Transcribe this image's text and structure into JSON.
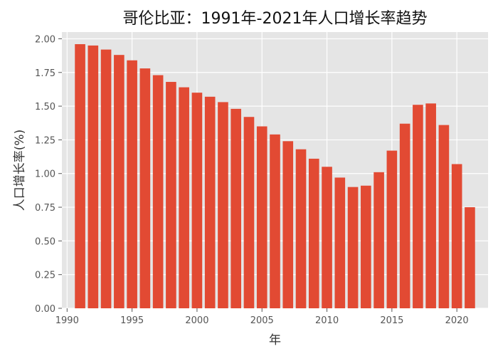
{
  "chart_data": {
    "type": "bar",
    "title": "哥伦比亚：1991年-2021年人口增长率趋势",
    "xlabel": "年",
    "ylabel": "人口增长率(%)",
    "x": [
      1991,
      1992,
      1993,
      1994,
      1995,
      1996,
      1997,
      1998,
      1999,
      2000,
      2001,
      2002,
      2003,
      2004,
      2005,
      2006,
      2007,
      2008,
      2009,
      2010,
      2011,
      2012,
      2013,
      2014,
      2015,
      2016,
      2017,
      2018,
      2019,
      2020,
      2021
    ],
    "values": [
      1.96,
      1.95,
      1.92,
      1.88,
      1.84,
      1.78,
      1.73,
      1.68,
      1.64,
      1.6,
      1.57,
      1.53,
      1.48,
      1.42,
      1.35,
      1.29,
      1.24,
      1.18,
      1.11,
      1.05,
      0.97,
      0.9,
      0.91,
      1.01,
      1.17,
      1.37,
      1.51,
      1.52,
      1.36,
      1.07,
      0.75
    ],
    "xticks": [
      1990,
      1995,
      2000,
      2005,
      2010,
      2015,
      2020
    ],
    "yticks": [
      "0.00",
      "0.25",
      "0.50",
      "0.75",
      "1.00",
      "1.25",
      "1.50",
      "1.75",
      "2.00"
    ],
    "xlim": [
      1989.6,
      2022.4
    ],
    "ylim": [
      0,
      2.05
    ],
    "grid": true,
    "colors": {
      "bar": "#E24A33",
      "plot_bg": "#E5E5E5",
      "grid": "#FFFFFF",
      "tick": "#555555"
    }
  }
}
